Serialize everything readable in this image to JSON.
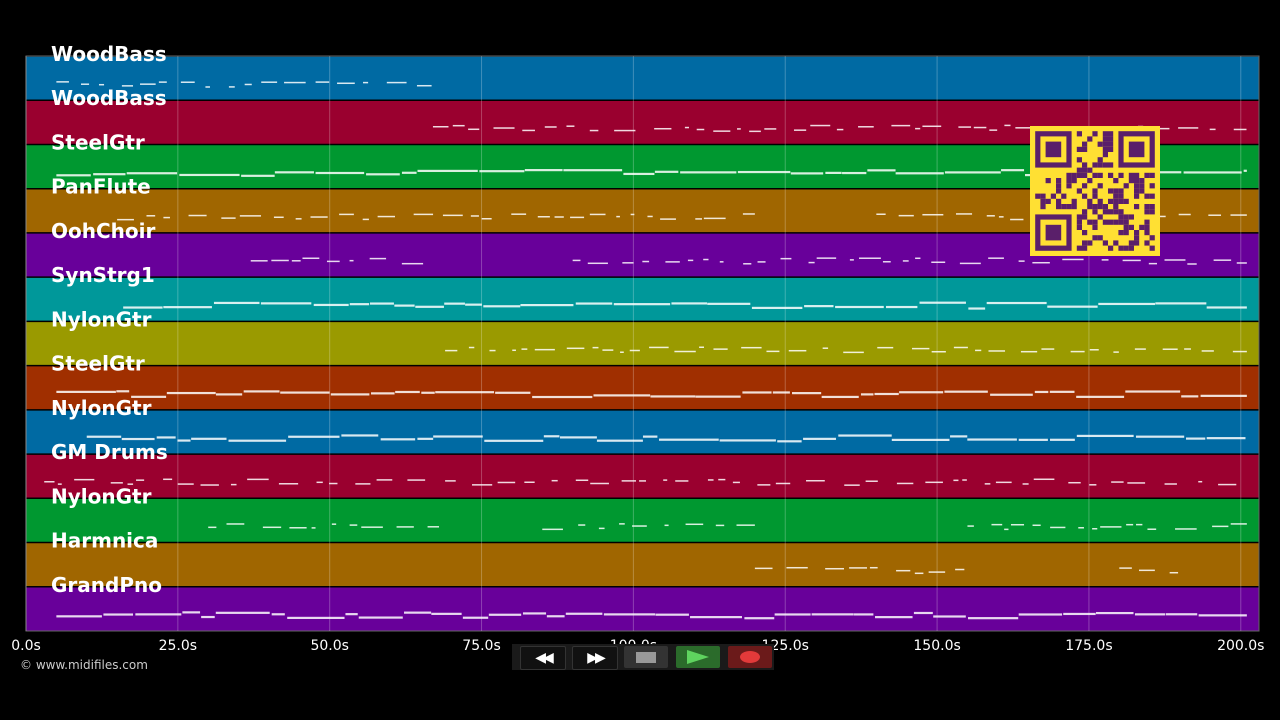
{
  "tracks": [
    {
      "name": "WoodBass",
      "color": "#006aa3"
    },
    {
      "name": "WoodBass",
      "color": "#9a002f"
    },
    {
      "name": "SteelGtr",
      "color": "#009830"
    },
    {
      "name": "PanFlute",
      "color": "#a06600"
    },
    {
      "name": "OohChoir",
      "color": "#68009a"
    },
    {
      "name": "SynStrg1",
      "color": "#00989a"
    },
    {
      "name": "NylonGtr",
      "color": "#9a9a00"
    },
    {
      "name": "SteelGtr",
      "color": "#a02f00"
    },
    {
      "name": "NylonGtr",
      "color": "#006aa3"
    },
    {
      "name": "GM Drums",
      "color": "#9a002f"
    },
    {
      "name": "NylonGtr",
      "color": "#009830"
    },
    {
      "name": "Harmnica",
      "color": "#a06600"
    },
    {
      "name": "GrandPno",
      "color": "#68009a"
    }
  ],
  "time_axis": {
    "ticks": [
      "0.0s",
      "25.0s",
      "50.0s",
      "75.0s",
      "100.0s",
      "125.0s",
      "150.0s",
      "175.0s",
      "200.0s"
    ],
    "values": [
      0,
      25,
      50,
      75,
      100,
      125,
      150,
      175,
      200
    ],
    "max_seconds": 203
  },
  "copyright": "© www.midifiles.com",
  "transport": {
    "rewind_icon": "rewind-icon",
    "forward_icon": "fast-forward-icon",
    "stop_icon": "stop-icon",
    "play_icon": "play-icon",
    "record_icon": "record-icon"
  },
  "note_color": "#ffffff",
  "qr_color": "#ffe033",
  "qr_dark": "#5a1f6a"
}
